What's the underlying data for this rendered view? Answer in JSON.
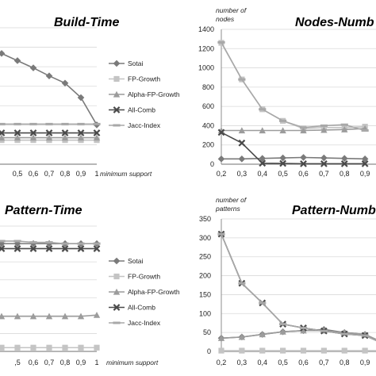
{
  "colors": {
    "Sotai": "#7a7a7a",
    "FP-Growth": "#c4c4c4",
    "Alpha-FP-Growth": "#9c9c9c",
    "All-Comb": "#4a4a4a",
    "Jacc-Index": "#a8a8a8",
    "grid": "#d9d9d9",
    "axis": "#8c8c8c"
  },
  "chart_data": [
    {
      "type": "line",
      "title": "Build-Time",
      "xlabel": "minimum support",
      "ylabel": "",
      "x": [
        0.2,
        0.3,
        0.4,
        0.5,
        0.6,
        0.7,
        0.8,
        0.9,
        1
      ],
      "x_tick_labels": [
        "0,5",
        "0,6",
        "0,7",
        "0,8",
        "0,9",
        "1"
      ],
      "xlim_visible": [
        0.5,
        1
      ],
      "y_tick_labels": [],
      "grid": true,
      "legend": "right",
      "series": [
        {
          "name": "Sotai",
          "marker": "diamond",
          "values": [
            1.55,
            1.47,
            1.38,
            1.29,
            1.2,
            1.1,
            1.01,
            0.83,
            0.49
          ]
        },
        {
          "name": "FP-Growth",
          "marker": "square",
          "values": [
            0.3,
            0.3,
            0.3,
            0.3,
            0.3,
            0.3,
            0.3,
            0.3,
            0.3
          ]
        },
        {
          "name": "Alpha-FP-Growth",
          "marker": "triangle",
          "values": [
            0.33,
            0.33,
            0.33,
            0.33,
            0.33,
            0.33,
            0.33,
            0.33,
            0.33
          ]
        },
        {
          "name": "All-Comb",
          "marker": "x",
          "values": [
            0.39,
            0.39,
            0.39,
            0.39,
            0.39,
            0.39,
            0.39,
            0.39,
            0.39
          ]
        },
        {
          "name": "Jacc-Index",
          "marker": "dash",
          "values": [
            0.5,
            0.5,
            0.5,
            0.5,
            0.5,
            0.5,
            0.5,
            0.5,
            0.5
          ]
        }
      ]
    },
    {
      "type": "line",
      "title": "Nodes-Numb",
      "ylabel": "number of nodes",
      "xlabel": "",
      "x": [
        0.2,
        0.3,
        0.4,
        0.5,
        0.6,
        0.7,
        0.8,
        0.9
      ],
      "x_tick_labels": [
        "0,2",
        "0,3",
        "0,4",
        "0,5",
        "0,6",
        "0,7",
        "0,8",
        "0,9"
      ],
      "ylim": [
        0,
        1400
      ],
      "y_tick_labels": [
        "0",
        "200",
        "400",
        "600",
        "800",
        "1000",
        "1200",
        "1400"
      ],
      "grid": true,
      "series": [
        {
          "name": "Sotai",
          "marker": "diamond",
          "values": [
            55,
            55,
            60,
            65,
            70,
            65,
            60,
            55
          ]
        },
        {
          "name": "FP-Growth",
          "marker": "square",
          "values": [
            1260,
            880,
            570,
            450,
            370,
            380,
            380,
            390
          ]
        },
        {
          "name": "Alpha-FP-Growth",
          "marker": "triangle",
          "values": [
            350,
            350,
            350,
            350,
            350,
            355,
            360,
            370
          ]
        },
        {
          "name": "All-Comb",
          "marker": "x",
          "values": [
            330,
            220,
            10,
            8,
            5,
            5,
            5,
            5
          ]
        },
        {
          "name": "Jacc-Index",
          "marker": "dash",
          "values": [
            1265,
            880,
            570,
            450,
            380,
            400,
            410,
            350
          ]
        }
      ]
    },
    {
      "type": "line",
      "title": "Pattern-Time",
      "xlabel": "minimum support",
      "ylabel": "",
      "x": [
        0.2,
        0.3,
        0.4,
        0.5,
        0.6,
        0.7,
        0.8,
        0.9,
        1
      ],
      "x_tick_labels": [
        ",5",
        "0,6",
        "0,7",
        "0,8",
        "0,9",
        "1"
      ],
      "xlim_visible": [
        0.5,
        1
      ],
      "y_tick_labels": [],
      "grid": true,
      "legend": "right",
      "series": [
        {
          "name": "Sotai",
          "marker": "diamond",
          "values": [
            0.86,
            0.86,
            0.86,
            0.86,
            0.86,
            0.86,
            0.86,
            0.86,
            0.86
          ]
        },
        {
          "name": "FP-Growth",
          "marker": "square",
          "values": [
            0.03,
            0.03,
            0.03,
            0.03,
            0.03,
            0.03,
            0.03,
            0.03,
            0.03
          ]
        },
        {
          "name": "Alpha-FP-Growth",
          "marker": "triangle",
          "values": [
            0.28,
            0.28,
            0.28,
            0.28,
            0.28,
            0.28,
            0.28,
            0.28,
            0.29
          ]
        },
        {
          "name": "All-Comb",
          "marker": "x",
          "values": [
            0.82,
            0.82,
            0.82,
            0.82,
            0.82,
            0.82,
            0.82,
            0.82,
            0.82
          ]
        },
        {
          "name": "Jacc-Index",
          "marker": "dash",
          "values": [
            0.88,
            0.88,
            0.88,
            0.88,
            0.87,
            0.87,
            0.86,
            0.86,
            0.86
          ]
        }
      ]
    },
    {
      "type": "line",
      "title": "Pattern-Numb",
      "ylabel": "number of patterns",
      "xlabel": "",
      "x": [
        0.2,
        0.3,
        0.4,
        0.5,
        0.6,
        0.7,
        0.8,
        0.9,
        1
      ],
      "x_tick_labels": [
        "0,2",
        "0,3",
        "0,4",
        "0,5",
        "0,6",
        "0,7",
        "0,8",
        "0,9"
      ],
      "ylim": [
        0,
        350
      ],
      "y_tick_labels": [
        "0",
        "50",
        "100",
        "150",
        "200",
        "250",
        "300",
        "350"
      ],
      "grid": true,
      "series": [
        {
          "name": "Sotai",
          "marker": "diamond",
          "values": [
            35,
            38,
            45,
            52,
            55,
            58,
            50,
            45,
            20
          ]
        },
        {
          "name": "FP-Growth",
          "marker": "square",
          "values": [
            2,
            2,
            2,
            2,
            2,
            2,
            2,
            2,
            2
          ]
        },
        {
          "name": "Alpha-FP-Growth",
          "marker": "triangle",
          "values": [
            35,
            38,
            45,
            52,
            55,
            55,
            50,
            45,
            20
          ]
        },
        {
          "name": "All-Comb",
          "marker": "x",
          "values": [
            310,
            180,
            128,
            72,
            62,
            54,
            46,
            42,
            18
          ]
        },
        {
          "name": "Jacc-Index",
          "marker": "dash",
          "values": [
            310,
            180,
            128,
            72,
            62,
            54,
            46,
            42,
            18
          ]
        }
      ]
    }
  ]
}
